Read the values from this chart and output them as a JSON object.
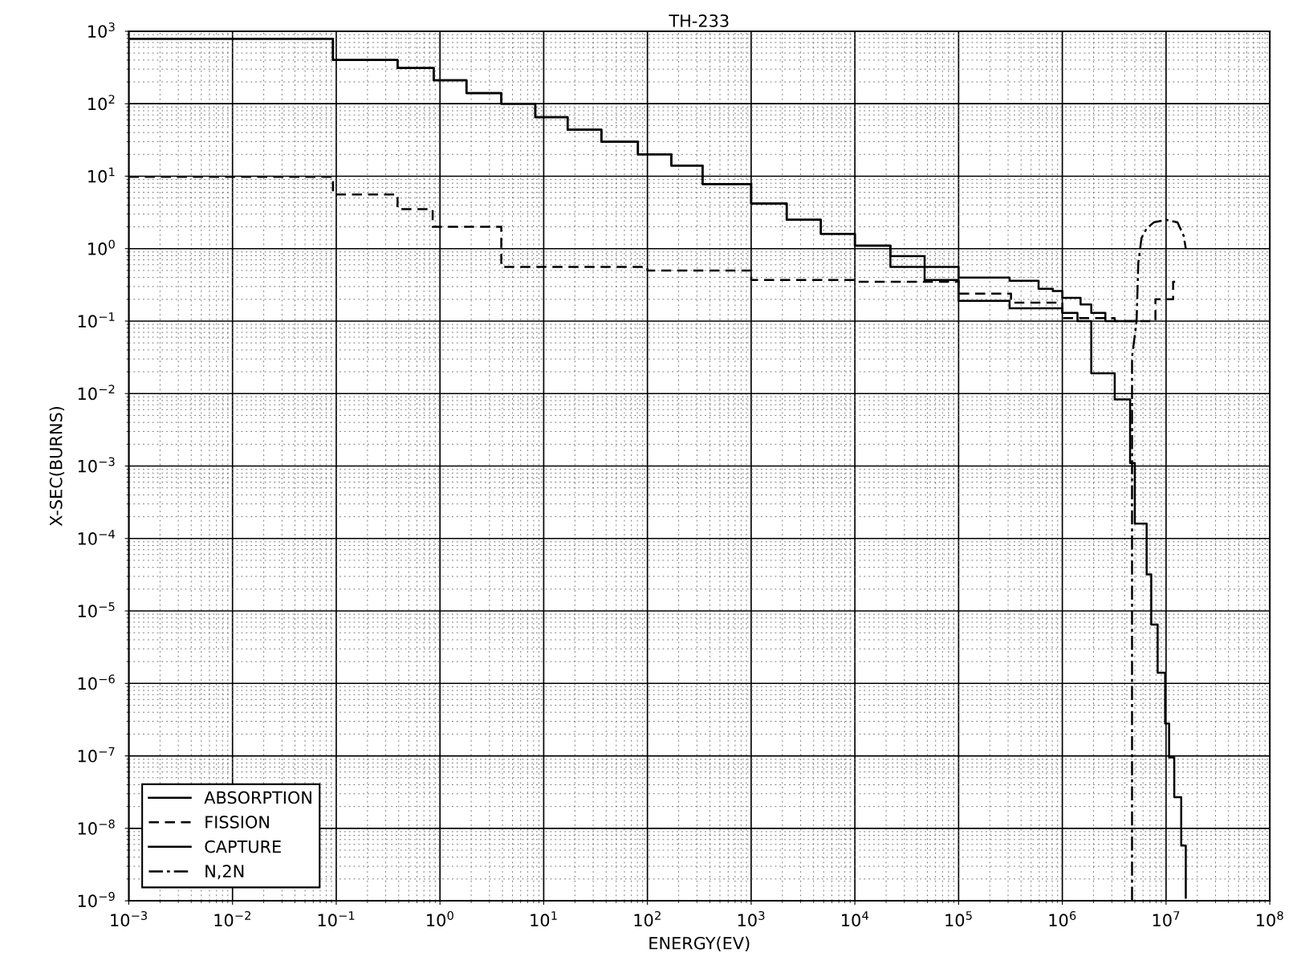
{
  "chart_data": {
    "type": "step",
    "title": "TH-233",
    "xlabel": "ENERGY(EV)",
    "ylabel": "X-SEC(BURNS)",
    "log": "xy",
    "grid": true,
    "legend": "bottom left",
    "xlim": [
      0.001,
      100000000
    ],
    "ylim": [
      1e-09,
      1000
    ],
    "xticks": [
      {
        "value": 0.001,
        "label": "10$^{−3}$"
      },
      {
        "value": 0.01,
        "label": "10$^{−2}$"
      },
      {
        "value": 0.1,
        "label": "10$^{−1}$"
      },
      {
        "value": 1,
        "label": "10$^{0}$"
      },
      {
        "value": 10,
        "label": "10$^{1}$"
      },
      {
        "value": 100,
        "label": "10$^{2}$"
      },
      {
        "value": 1000,
        "label": "10$^{3}$"
      },
      {
        "value": 10000,
        "label": "10$^{4}$"
      },
      {
        "value": 100000,
        "label": "10$^{5}$"
      },
      {
        "value": 1000000,
        "label": "10$^{6}$"
      },
      {
        "value": 10000000,
        "label": "10$^{7}$"
      },
      {
        "value": 100000000,
        "label": "10$^{8}$"
      }
    ],
    "yticks": [
      {
        "value": 1e-09,
        "label": "10$^{−9}$"
      },
      {
        "value": 1e-08,
        "label": "10$^{−8}$"
      },
      {
        "value": 1e-07,
        "label": "10$^{−7}$"
      },
      {
        "value": 1e-06,
        "label": "10$^{−6}$"
      },
      {
        "value": 1e-05,
        "label": "10$^{−5}$"
      },
      {
        "value": 0.0001,
        "label": "10$^{−4}$"
      },
      {
        "value": 0.001,
        "label": "10$^{−3}$"
      },
      {
        "value": 0.01,
        "label": "10$^{−2}$"
      },
      {
        "value": 0.1,
        "label": "10$^{−1}$"
      },
      {
        "value": 1,
        "label": "10$^{0}$"
      },
      {
        "value": 10,
        "label": "10$^{1}$"
      },
      {
        "value": 100,
        "label": "10$^{2}$"
      },
      {
        "value": 1000,
        "label": "10$^{3}$"
      }
    ],
    "series": [
      {
        "name": "ABSORPTION",
        "color": "#000000",
        "line_style": "solid",
        "x": [
          0.001,
          0.093,
          0.39,
          0.87,
          1.8,
          3.9,
          8.3,
          17,
          36,
          81,
          170,
          340,
          1000,
          2200,
          4700,
          10000,
          22000,
          47000,
          100000,
          310000,
          590000,
          810000,
          1000000,
          1500000,
          1900000,
          2600000,
          3400000,
          5000000
        ],
        "values": [
          790,
          400,
          310,
          210,
          140,
          100,
          65,
          44,
          30,
          20,
          14,
          7.8,
          4.2,
          2.5,
          1.6,
          1.1,
          0.79,
          0.56,
          0.4,
          0.36,
          0.28,
          0.26,
          0.21,
          0.17,
          0.13,
          0.1,
          0.1,
          0.1
        ]
      },
      {
        "name": "FISSION",
        "color": "#000000",
        "line_style": "dashed",
        "x": [
          0.001,
          0.093,
          0.39,
          0.85,
          3.9,
          100,
          1000,
          10000,
          100000,
          320000,
          1000000,
          3200000,
          7900000,
          11700000,
          13800000
        ],
        "values": [
          9.8,
          5.6,
          3.5,
          2.0,
          0.56,
          0.5,
          0.37,
          0.35,
          0.24,
          0.18,
          0.11,
          0.1,
          0.2,
          0.35,
          0.35
        ]
      },
      {
        "name": "CAPTURE",
        "color": "#000000",
        "line_style": "solid",
        "x": [
          0.001,
          0.093,
          0.39,
          0.87,
          1.8,
          3.9,
          8.3,
          17,
          36,
          81,
          170,
          340,
          1000,
          2200,
          4700,
          10000,
          22000,
          47000,
          100000,
          310000,
          1000000,
          1400000,
          1900000,
          3200000,
          4500000,
          5000000,
          6500000,
          7200000,
          8300000,
          9800000,
          10700000,
          12000000,
          14000000,
          15500000
        ],
        "values": [
          790,
          400,
          310,
          210,
          140,
          100,
          65,
          44,
          30,
          20,
          14,
          7.8,
          4.2,
          2.5,
          1.6,
          1.1,
          0.56,
          0.37,
          0.19,
          0.15,
          0.13,
          0.1,
          0.019,
          0.0083,
          0.0011,
          0.00016,
          3.2e-05,
          6.5e-06,
          1.4e-06,
          2.8e-07,
          9.5e-08,
          2.7e-08,
          5.8e-09,
          1.1e-09
        ]
      },
      {
        "name": "N,2N",
        "type": "line",
        "color": "#000000",
        "line_style": "dashdot",
        "x": [
          4700000,
          4700000,
          5200000,
          5400000,
          5800000,
          6500000,
          7600000,
          10000000,
          12900000,
          14800000,
          15500000
        ],
        "values": [
          1e-09,
          0.032,
          0.1,
          0.63,
          1.4,
          1.9,
          2.3,
          2.5,
          2.3,
          1.5,
          1.0
        ]
      }
    ]
  }
}
